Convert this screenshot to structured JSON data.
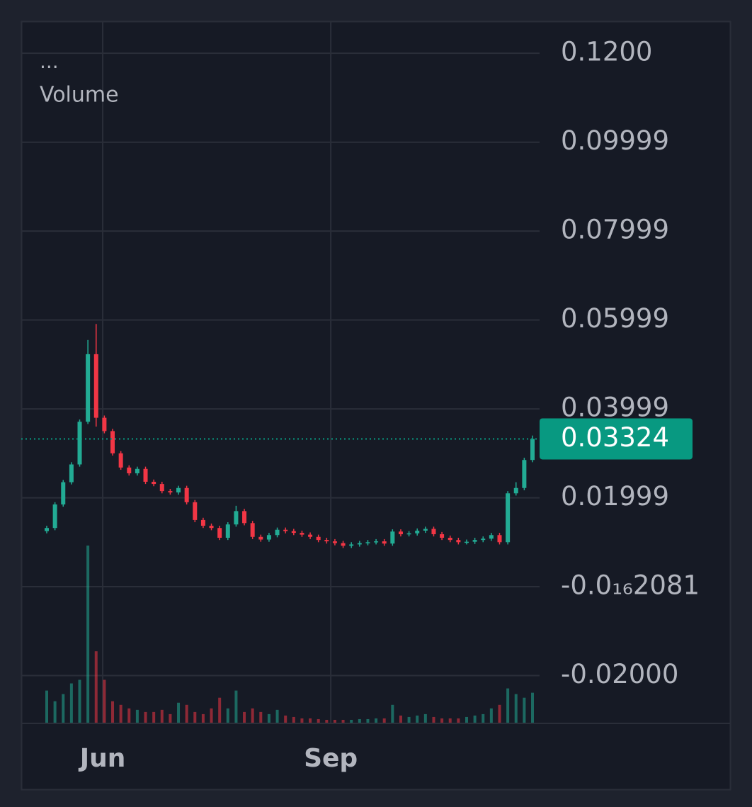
{
  "chart_data": {
    "type": "candlestick",
    "legend": {
      "menu": "...",
      "label": "Volume"
    },
    "open": [
      0.0125,
      0.0132,
      0.0185,
      0.0235,
      0.0275,
      0.0371,
      0.0523,
      0.038,
      0.035,
      0.03,
      0.0268,
      0.0255,
      0.0265,
      0.0236,
      0.0231,
      0.0215,
      0.0212,
      0.0222,
      0.019,
      0.015,
      0.0137,
      0.0132,
      0.011,
      0.014,
      0.017,
      0.0143,
      0.0112,
      0.0106,
      0.0116,
      0.0128,
      0.0125,
      0.0121,
      0.0117,
      0.0112,
      0.0105,
      0.0102,
      0.0098,
      0.0092,
      0.0095,
      0.0098,
      0.01,
      0.0102,
      0.0097,
      0.0124,
      0.0118,
      0.012,
      0.0126,
      0.013,
      0.0118,
      0.011,
      0.0105,
      0.01,
      0.0101,
      0.0105,
      0.0108,
      0.0116,
      0.01,
      0.021,
      0.0222,
      0.0285
    ],
    "high": [
      0.0137,
      0.019,
      0.024,
      0.028,
      0.0376,
      0.0555,
      0.0591,
      0.0385,
      0.0355,
      0.0305,
      0.0273,
      0.027,
      0.027,
      0.0241,
      0.0236,
      0.022,
      0.0227,
      0.0227,
      0.0195,
      0.0155,
      0.0142,
      0.0137,
      0.0145,
      0.0182,
      0.0175,
      0.0148,
      0.0117,
      0.0121,
      0.0133,
      0.0133,
      0.013,
      0.0126,
      0.0122,
      0.0117,
      0.011,
      0.0107,
      0.0103,
      0.01,
      0.0103,
      0.0105,
      0.0107,
      0.0107,
      0.0129,
      0.0129,
      0.0125,
      0.0131,
      0.0135,
      0.0135,
      0.0123,
      0.0115,
      0.011,
      0.0106,
      0.011,
      0.0113,
      0.0121,
      0.0121,
      0.0215,
      0.0235,
      0.029,
      0.034
    ],
    "low": [
      0.012,
      0.0127,
      0.018,
      0.023,
      0.027,
      0.0366,
      0.036,
      0.0345,
      0.0295,
      0.0263,
      0.025,
      0.025,
      0.0231,
      0.0226,
      0.021,
      0.0207,
      0.0207,
      0.0185,
      0.0145,
      0.0132,
      0.0127,
      0.0105,
      0.0105,
      0.0135,
      0.0138,
      0.0107,
      0.0101,
      0.0101,
      0.0111,
      0.012,
      0.0116,
      0.0112,
      0.0107,
      0.01,
      0.0097,
      0.0093,
      0.0087,
      0.0087,
      0.009,
      0.0093,
      0.0095,
      0.0092,
      0.0092,
      0.0113,
      0.0113,
      0.0115,
      0.0121,
      0.0113,
      0.0105,
      0.01,
      0.0095,
      0.0095,
      0.0096,
      0.01,
      0.0103,
      0.0095,
      0.0095,
      0.0205,
      0.0217,
      0.028
    ],
    "close": [
      0.0132,
      0.0185,
      0.0235,
      0.0275,
      0.0371,
      0.0523,
      0.038,
      0.035,
      0.03,
      0.0268,
      0.0255,
      0.0265,
      0.0236,
      0.0231,
      0.0215,
      0.0212,
      0.0222,
      0.019,
      0.015,
      0.0137,
      0.0132,
      0.011,
      0.014,
      0.017,
      0.0143,
      0.0112,
      0.0106,
      0.0116,
      0.0128,
      0.0125,
      0.0121,
      0.0117,
      0.0112,
      0.0105,
      0.0102,
      0.0098,
      0.0092,
      0.0095,
      0.0098,
      0.01,
      0.0102,
      0.0097,
      0.0124,
      0.0118,
      0.012,
      0.0126,
      0.013,
      0.0118,
      0.011,
      0.0105,
      0.01,
      0.0101,
      0.0105,
      0.0108,
      0.0116,
      0.01,
      0.021,
      0.0222,
      0.0285,
      0.03324
    ],
    "volume": [
      45,
      30,
      40,
      55,
      60,
      248,
      100,
      60,
      30,
      25,
      20,
      18,
      15,
      15,
      18,
      12,
      28,
      25,
      15,
      12,
      20,
      35,
      20,
      45,
      15,
      20,
      15,
      12,
      18,
      10,
      8,
      6,
      6,
      5,
      4,
      4,
      4,
      4,
      5,
      5,
      6,
      6,
      25,
      10,
      8,
      10,
      12,
      8,
      6,
      6,
      6,
      8,
      10,
      12,
      20,
      25,
      48,
      40,
      35,
      42
    ],
    "up_color": "#22ab94",
    "down_color": "#f23645",
    "last_price": 0.03324,
    "last_price_color": "#089981",
    "xlim": [
      0,
      59
    ],
    "xticks": [
      {
        "value": 6.8,
        "label": "Jun"
      },
      {
        "value": 34.5,
        "label": "Sep"
      }
    ],
    "ylim": [
      -0.0306,
      0.1272
    ],
    "yticks": [
      {
        "value": 0.12,
        "label": "0.1200"
      },
      0.09999,
      0.07999,
      0.05999,
      0.03999,
      0.01999,
      {
        "value": -2.081e-17,
        "label": "-0.0₁₆2081"
      },
      {
        "value": -0.02,
        "label": "-0.02000"
      }
    ],
    "grid": true
  }
}
